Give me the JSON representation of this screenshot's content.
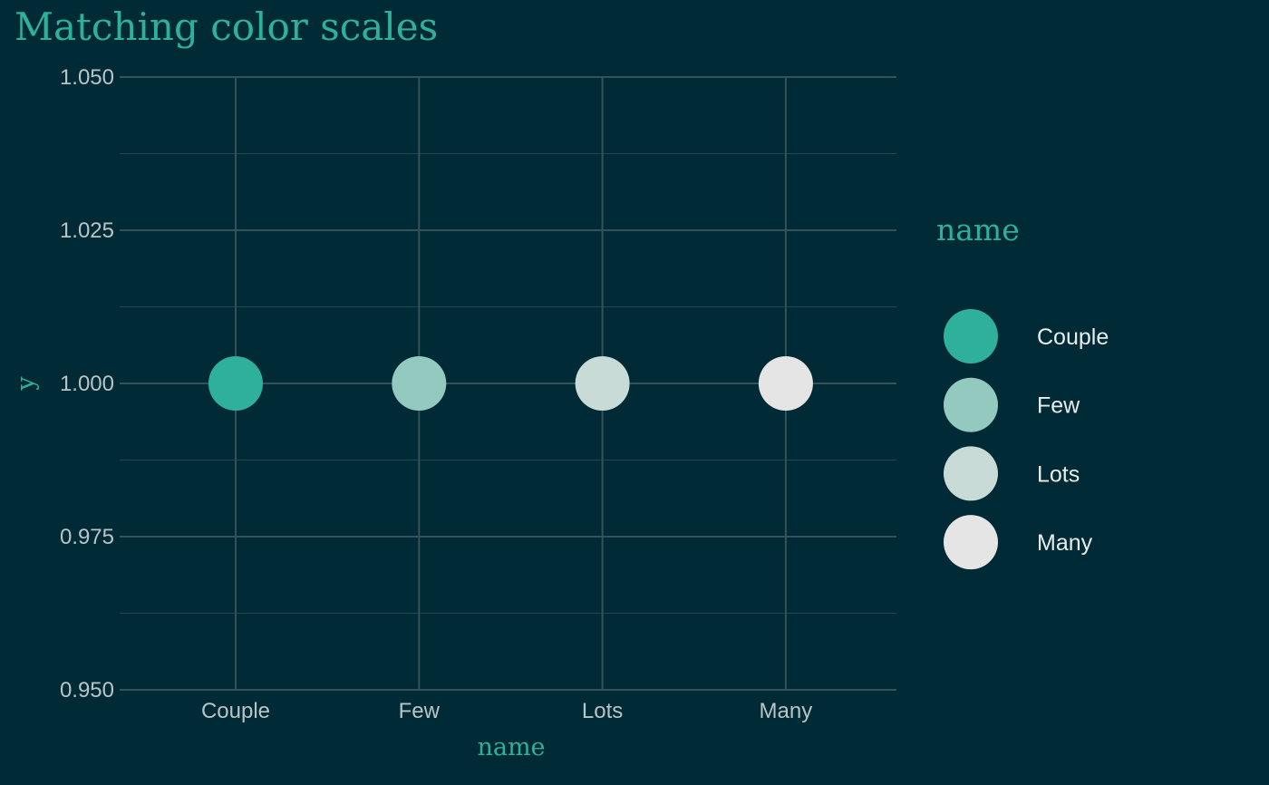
{
  "chart_data": {
    "type": "scatter",
    "title": "Matching color scales",
    "xlabel": "name",
    "ylabel": "y",
    "categories": [
      "Couple",
      "Few",
      "Lots",
      "Many"
    ],
    "points": [
      {
        "x": "Couple",
        "y": 1.0,
        "color": "#2eb09c"
      },
      {
        "x": "Few",
        "y": 1.0,
        "color": "#94c9bf"
      },
      {
        "x": "Lots",
        "y": 1.0,
        "color": "#c8dbd6"
      },
      {
        "x": "Many",
        "y": 1.0,
        "color": "#e5e5e5"
      }
    ],
    "ylim": [
      0.95,
      1.05
    ],
    "y_ticks": [
      "0.950",
      "0.975",
      "1.000",
      "1.025",
      "1.050"
    ],
    "grid": true,
    "legend": {
      "title": "name",
      "placement": "right",
      "items": [
        {
          "label": "Couple",
          "color": "#2eb09c"
        },
        {
          "label": "Few",
          "color": "#94c9bf"
        },
        {
          "label": "Lots",
          "color": "#c8dbd6"
        },
        {
          "label": "Many",
          "color": "#e5e5e5"
        }
      ]
    }
  },
  "colors": {
    "background": "#002b36",
    "accent": "#2eb09c",
    "grid": "#34525a",
    "tick_text": "#b9c4c6",
    "legend_text": "#e8ecec"
  }
}
